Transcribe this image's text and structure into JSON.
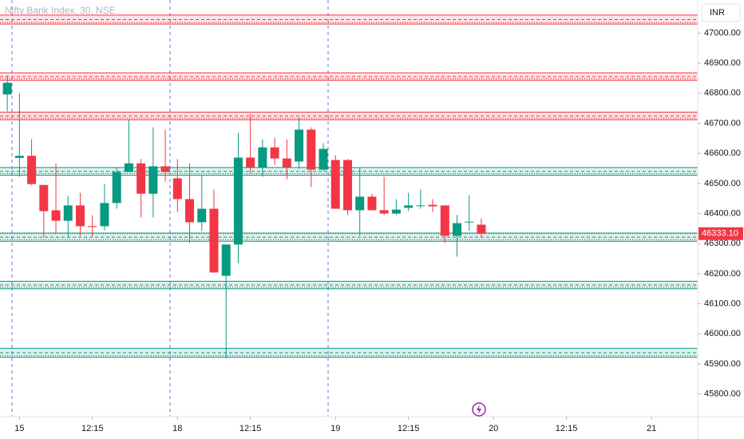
{
  "chart_data": {
    "type": "candlestick",
    "title": "Nifty Bank Index, 30, NSE",
    "currency": "INR",
    "up_color": "#089981",
    "down_color": "#f23645",
    "open": [
      46796,
      46585,
      46592,
      46495,
      46411,
      46376,
      46427,
      46358,
      46358,
      46435,
      46538,
      46567,
      46466,
      46557,
      46517,
      46448,
      46371,
      46416,
      46193,
      46297,
      46586,
      46554,
      46620,
      46583,
      46573,
      46679,
      46546,
      46578,
      46578,
      46411,
      46456,
      46411,
      46400,
      46419,
      46427,
      46429,
      46427,
      46326,
      46371,
      46363
    ],
    "high": [
      46859,
      46799,
      46647,
      46495,
      46567,
      46458,
      46469,
      46395,
      46498,
      46554,
      46713,
      46581,
      46687,
      46679,
      46581,
      46567,
      46527,
      46480,
      46297,
      46668,
      46732,
      46647,
      46652,
      46647,
      46719,
      46687,
      46634,
      46594,
      46581,
      46554,
      46466,
      46522,
      46448,
      46469,
      46480,
      46448,
      46427,
      46395,
      46461,
      46384
    ],
    "low": [
      46740,
      46522,
      46495,
      46320,
      46334,
      46323,
      46326,
      46323,
      46344,
      46416,
      46546,
      46387,
      46387,
      46506,
      46405,
      46302,
      46342,
      46204,
      45918,
      46235,
      46533,
      46522,
      46562,
      46514,
      46549,
      46488,
      46541,
      46416,
      46395,
      46326,
      46411,
      46395,
      46395,
      46408,
      46416,
      46405,
      46302,
      46257,
      46342,
      46320
    ],
    "close": [
      46835,
      46592,
      46498,
      46408,
      46376,
      46427,
      46358,
      46355,
      46435,
      46538,
      46567,
      46466,
      46557,
      46538,
      46448,
      46371,
      46416,
      46204,
      46297,
      46586,
      46554,
      46620,
      46583,
      46554,
      46679,
      46546,
      46615,
      46416,
      46411,
      46456,
      46411,
      46400,
      46413,
      46427,
      46427,
      46424,
      46326,
      46368,
      46373,
      46333.1
    ],
    "xlim": [
      -0.6,
      56.8
    ],
    "xticks": [
      {
        "value": 1,
        "label": "15"
      },
      {
        "value": 7,
        "label": "12:15"
      },
      {
        "value": 14,
        "label": "18"
      },
      {
        "value": 20,
        "label": "12:15"
      },
      {
        "value": 27,
        "label": "19"
      },
      {
        "value": 33,
        "label": "12:15"
      },
      {
        "value": 40,
        "label": "20"
      },
      {
        "value": 46,
        "label": "12:15"
      },
      {
        "value": 53,
        "label": "21"
      }
    ],
    "ylim": [
      45730,
      47110
    ],
    "yticks": [
      {
        "value": 45800,
        "label": "45800.00"
      },
      {
        "value": 45900,
        "label": "45900.00"
      },
      {
        "value": 46000,
        "label": "46000.00"
      },
      {
        "value": 46100,
        "label": "46100.00"
      },
      {
        "value": 46200,
        "label": "46200.00"
      },
      {
        "value": 46300,
        "label": "46300.00"
      },
      {
        "value": 46400,
        "label": "46400.00"
      },
      {
        "value": 46500,
        "label": "46500.00"
      },
      {
        "value": 46600,
        "label": "46600.00"
      },
      {
        "value": 46700,
        "label": "46700.00"
      },
      {
        "value": 46800,
        "label": "46800.00"
      },
      {
        "value": 46900,
        "label": "46900.00"
      },
      {
        "value": 47000,
        "label": "47000.00"
      }
    ],
    "last_price": {
      "value": 46333.1,
      "label": "46333.10"
    },
    "bands": [
      {
        "low": 47030,
        "high": 47060,
        "color": "#f23645"
      },
      {
        "low": 46843,
        "high": 46868,
        "color": "#f23645"
      },
      {
        "low": 46712,
        "high": 46737,
        "color": "#f23645"
      },
      {
        "low": 46527,
        "high": 46553,
        "color": "#089981"
      },
      {
        "low": 46308,
        "high": 46335,
        "color": "#089981"
      },
      {
        "low": 46150,
        "high": 46175,
        "color": "#089981"
      },
      {
        "low": 45922,
        "high": 45952,
        "color": "#089981"
      }
    ]
  }
}
